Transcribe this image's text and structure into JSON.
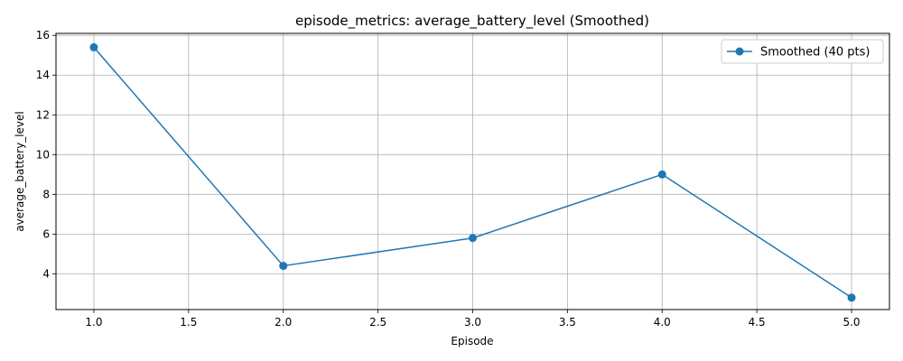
{
  "chart_data": {
    "type": "line",
    "title": "episode_metrics: average_battery_level (Smoothed)",
    "xlabel": "Episode",
    "ylabel": "average_battery_level",
    "xlim": [
      0.8,
      5.2
    ],
    "ylim": [
      2.2,
      16.1
    ],
    "xticks": [
      1.0,
      1.5,
      2.0,
      2.5,
      3.0,
      3.5,
      4.0,
      4.5,
      5.0
    ],
    "xtick_labels": [
      "1.0",
      "1.5",
      "2.0",
      "2.5",
      "3.0",
      "3.5",
      "4.0",
      "4.5",
      "5.0"
    ],
    "yticks": [
      4,
      6,
      8,
      10,
      12,
      14,
      16
    ],
    "ytick_labels": [
      "4",
      "6",
      "8",
      "10",
      "12",
      "14",
      "16"
    ],
    "grid": true,
    "legend_position": "top-right",
    "series": [
      {
        "name": "Smoothed (40 pts)",
        "color": "#1f77b4",
        "marker": "circle",
        "x": [
          1.0,
          2.0,
          3.0,
          4.0,
          5.0
        ],
        "y": [
          15.4,
          4.4,
          5.8,
          9.0,
          2.8
        ]
      }
    ]
  }
}
